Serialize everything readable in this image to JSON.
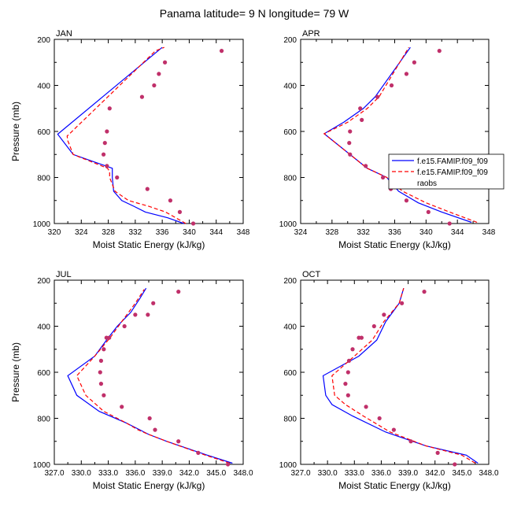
{
  "figure": {
    "title": "Panama  latitude= 9 N longitude= 79 W"
  },
  "legend": {
    "entries": [
      {
        "label": "f.e15.FAMIP.f09_f09",
        "color": "#0000ff",
        "dash": "solid"
      },
      {
        "label": "f.e15.FAMIP.f09_f09",
        "color": "#ff0000",
        "dash": "dashed"
      },
      {
        "label": "raobs",
        "color": "#c0306a",
        "marker": "dot"
      }
    ]
  },
  "chart_data": [
    {
      "type": "line",
      "panel_label": "JAN",
      "xlabel": "Moist Static Energy (kJ/kg)",
      "ylabel": "Pressure (mb)",
      "xlim": [
        320,
        348
      ],
      "ylim": [
        1000,
        200
      ],
      "y_inverted": true,
      "x_ticks": [
        320,
        324,
        328,
        332,
        336,
        340,
        344,
        348
      ],
      "x_tick_labels": [
        "320",
        "324",
        "328",
        "332",
        "336",
        "340",
        "344",
        "348"
      ],
      "y_ticks": [
        200,
        400,
        600,
        800,
        1000
      ],
      "y_tick_labels": [
        "200",
        "400",
        "600",
        "800",
        "1000"
      ],
      "series": [
        {
          "name": "f.e15.FAMIP.f09_f09",
          "color": "#0000ff",
          "dash": "solid",
          "x": [
            339.2,
            336.8,
            333.5,
            331.8,
            330.0,
            328.8,
            328.6,
            328.6,
            328.6,
            322.8,
            320.5,
            336.0
          ],
          "y": [
            1000,
            975,
            950,
            925,
            900,
            860,
            800,
            775,
            760,
            700,
            612,
            235
          ]
        },
        {
          "name": "f.e15.FAMIP.f09_f09",
          "color": "#ff0000",
          "dash": "dashed",
          "x": [
            339.5,
            338.0,
            336.5,
            334.0,
            331.0,
            329.0,
            328.2,
            328.2,
            327.9,
            322.8,
            322.0,
            321.9,
            335.0,
            336.3
          ],
          "y": [
            1000,
            975,
            950,
            925,
            900,
            860,
            800,
            775,
            760,
            700,
            640,
            620,
            250,
            235
          ]
        },
        {
          "name": "raobs",
          "color": "#c0306a",
          "marker": "dot",
          "x": [
            340.6,
            338.6,
            337.2,
            333.8,
            329.3,
            327.8,
            327.3,
            327.5,
            327.8,
            328.2,
            333.0,
            334.8,
            335.5,
            336.4,
            344.8
          ],
          "y": [
            1000,
            950,
            900,
            850,
            800,
            750,
            700,
            650,
            600,
            500,
            450,
            400,
            350,
            300,
            250
          ]
        }
      ]
    },
    {
      "type": "line",
      "panel_label": "APR",
      "xlabel": "Moist Static Energy (kJ/kg)",
      "ylabel": "",
      "xlim": [
        324,
        348
      ],
      "ylim": [
        1000,
        200
      ],
      "y_inverted": true,
      "x_ticks": [
        324,
        328,
        332,
        336,
        340,
        344,
        348
      ],
      "x_tick_labels": [
        "324",
        "328",
        "332",
        "336",
        "340",
        "344",
        "348"
      ],
      "y_ticks": [
        200,
        400,
        600,
        800,
        1000
      ],
      "y_tick_labels": [
        "200",
        "400",
        "600",
        "800",
        "1000"
      ],
      "series": [
        {
          "name": "f.e15.FAMIP.f09_f09",
          "color": "#0000ff",
          "dash": "solid",
          "x": [
            345.8,
            342.0,
            339.0,
            336.5,
            335.0,
            332.5,
            327.0,
            329.5,
            332.0,
            333.5,
            338.0
          ],
          "y": [
            995,
            950,
            910,
            860,
            800,
            760,
            610,
            560,
            500,
            450,
            235
          ]
        },
        {
          "name": "f.e15.FAMIP.f09_f09",
          "color": "#ff0000",
          "dash": "dashed",
          "x": [
            346.5,
            343.0,
            340.0,
            337.0,
            335.0,
            332.5,
            327.0,
            330.0,
            332.5,
            334.0,
            337.8
          ],
          "y": [
            995,
            950,
            910,
            860,
            800,
            760,
            610,
            560,
            500,
            450,
            235
          ]
        },
        {
          "name": "raobs",
          "color": "#c0306a",
          "marker": "dot",
          "x": [
            343.0,
            340.3,
            337.5,
            335.5,
            334.5,
            332.3,
            330.3,
            330.2,
            330.3,
            331.8,
            331.6,
            333.8,
            335.6,
            337.5,
            338.5,
            341.7
          ],
          "y": [
            1000,
            950,
            900,
            850,
            800,
            750,
            700,
            650,
            600,
            550,
            500,
            450,
            400,
            350,
            300,
            250
          ]
        }
      ]
    },
    {
      "type": "line",
      "panel_label": "JUL",
      "xlabel": "Moist Static Energy (kJ/kg)",
      "ylabel": "Pressure (mb)",
      "xlim": [
        327,
        348
      ],
      "ylim": [
        1000,
        200
      ],
      "y_inverted": true,
      "x_ticks": [
        327,
        330,
        333,
        336,
        339,
        342,
        345,
        348
      ],
      "x_tick_labels": [
        "327.0",
        "330.0",
        "333.0",
        "336.0",
        "339.0",
        "342.0",
        "345.0",
        "348.0"
      ],
      "y_ticks": [
        200,
        400,
        600,
        800,
        1000
      ],
      "y_tick_labels": [
        "200",
        "400",
        "600",
        "800",
        "1000"
      ],
      "series": [
        {
          "name": "f.e15.FAMIP.f09_f09",
          "color": "#0000ff",
          "dash": "solid",
          "x": [
            346.8,
            344.0,
            339.5,
            337.5,
            336.5,
            335.0,
            332.0,
            329.5,
            328.5,
            331.5,
            333.0,
            334.0,
            335.5,
            336.5,
            337.2
          ],
          "y": [
            995,
            960,
            900,
            870,
            850,
            820,
            770,
            700,
            615,
            530,
            450,
            400,
            340,
            280,
            235
          ]
        },
        {
          "name": "f.e15.FAMIP.f09_f09",
          "color": "#ff0000",
          "dash": "dashed",
          "x": [
            346.5,
            343.8,
            339.5,
            337.5,
            336.3,
            335.0,
            332.5,
            330.5,
            329.5,
            331.5,
            333.2,
            334.5,
            336.0,
            337.0
          ],
          "y": [
            995,
            960,
            900,
            870,
            850,
            820,
            770,
            700,
            615,
            530,
            450,
            380,
            300,
            240
          ]
        },
        {
          "name": "raobs",
          "color": "#c0306a",
          "marker": "dot",
          "x": [
            346.3,
            343.0,
            340.8,
            338.2,
            337.6,
            334.5,
            332.5,
            332.2,
            332.1,
            332.2,
            332.5,
            332.8,
            333.1,
            334.8,
            336.0,
            337.4,
            338.0,
            340.8
          ],
          "y": [
            1000,
            950,
            900,
            850,
            800,
            750,
            700,
            650,
            600,
            550,
            500,
            450,
            450,
            400,
            350,
            350,
            300,
            250
          ]
        }
      ]
    },
    {
      "type": "line",
      "panel_label": "OCT",
      "xlabel": "Moist Static Energy (kJ/kg)",
      "ylabel": "",
      "xlim": [
        327,
        348
      ],
      "ylim": [
        1000,
        200
      ],
      "y_inverted": true,
      "x_ticks": [
        327,
        330,
        333,
        336,
        339,
        342,
        345,
        348
      ],
      "x_tick_labels": [
        "327.0",
        "330.0",
        "333.0",
        "336.0",
        "339.0",
        "342.0",
        "345.0",
        "348.0"
      ],
      "y_ticks": [
        200,
        400,
        600,
        800,
        1000
      ],
      "y_tick_labels": [
        "200",
        "400",
        "600",
        "800",
        "1000"
      ],
      "series": [
        {
          "name": "f.e15.FAMIP.f09_f09",
          "color": "#0000ff",
          "dash": "solid",
          "x": [
            346.8,
            345.5,
            341.0,
            336.5,
            332.8,
            330.5,
            329.8,
            329.5,
            333.5,
            335.5,
            336.5,
            338.0,
            338.5
          ],
          "y": [
            995,
            960,
            920,
            860,
            790,
            740,
            700,
            615,
            530,
            460,
            380,
            300,
            235
          ]
        },
        {
          "name": "f.e15.FAMIP.f09_f09",
          "color": "#ff0000",
          "dash": "dashed",
          "x": [
            346.5,
            345.0,
            341.0,
            337.0,
            334.0,
            332.0,
            330.8,
            330.5,
            333.0,
            335.0,
            336.3,
            338.0,
            338.5
          ],
          "y": [
            995,
            960,
            920,
            860,
            790,
            740,
            700,
            615,
            530,
            460,
            380,
            300,
            235
          ]
        },
        {
          "name": "raobs",
          "color": "#c0306a",
          "marker": "dot",
          "x": [
            344.2,
            342.3,
            339.3,
            337.4,
            335.8,
            334.3,
            332.3,
            332.0,
            332.3,
            332.4,
            332.8,
            333.5,
            333.8,
            335.2,
            336.3,
            338.3,
            340.8
          ],
          "y": [
            1000,
            950,
            900,
            850,
            800,
            750,
            700,
            650,
            600,
            550,
            500,
            450,
            450,
            400,
            350,
            300,
            250
          ]
        }
      ]
    }
  ]
}
